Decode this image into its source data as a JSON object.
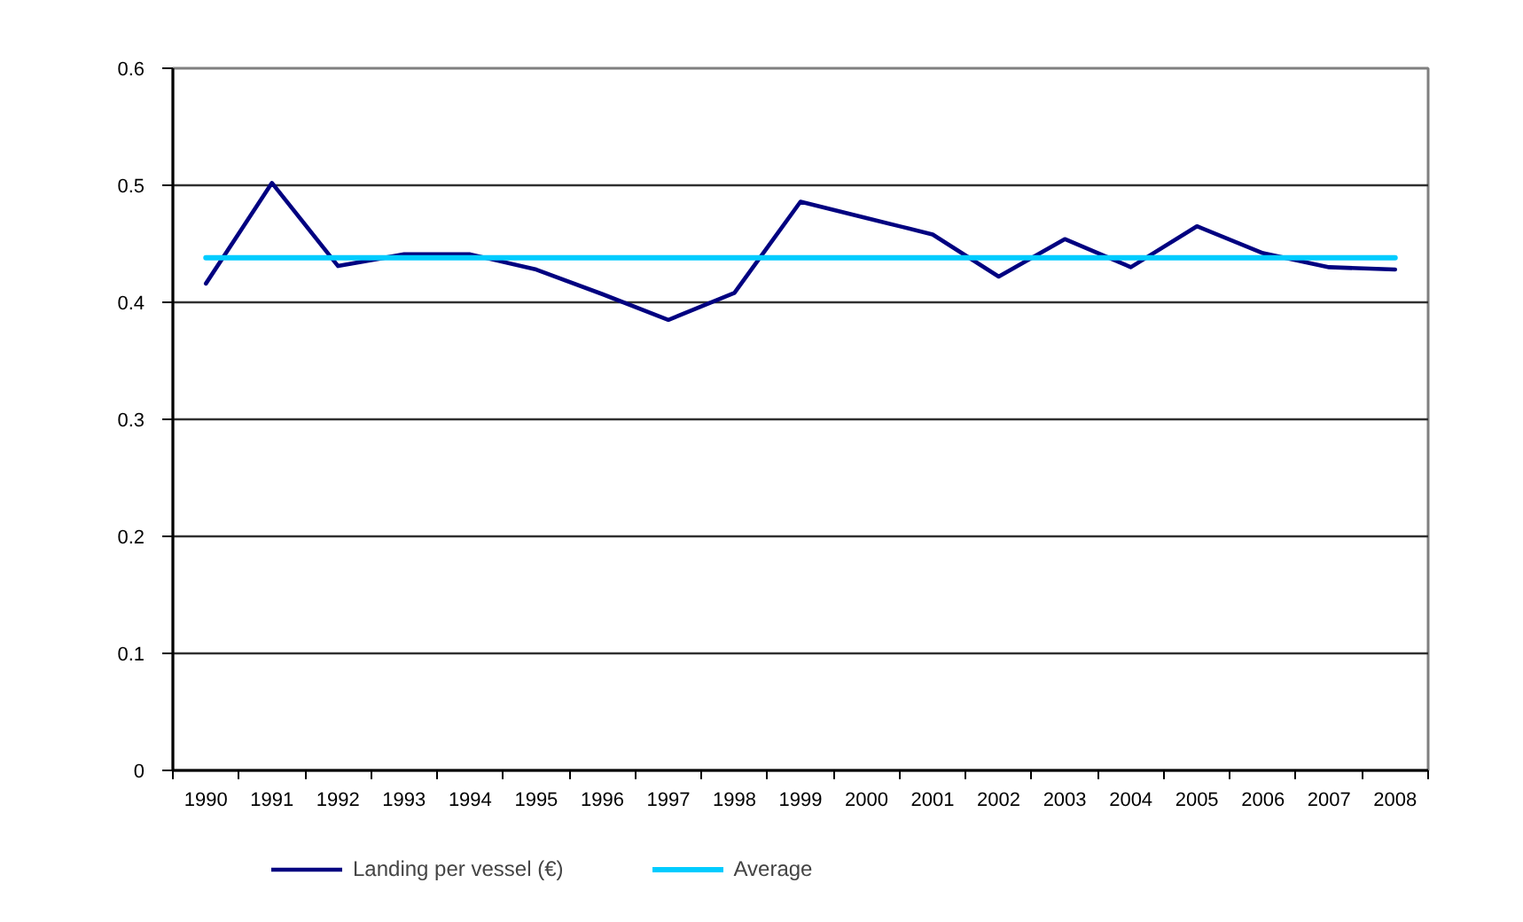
{
  "chart_data": {
    "type": "line",
    "categories": [
      "1990",
      "1991",
      "1992",
      "1993",
      "1994",
      "1995",
      "1996",
      "1997",
      "1998",
      "1999",
      "2000",
      "2001",
      "2002",
      "2003",
      "2004",
      "2005",
      "2006",
      "2007",
      "2008"
    ],
    "series": [
      {
        "name": "Landing per vessel (€)",
        "color": "#000080",
        "values": [
          0.416,
          0.502,
          0.431,
          0.441,
          0.441,
          0.428,
          0.407,
          0.385,
          0.408,
          0.486,
          0.472,
          0.458,
          0.422,
          0.454,
          0.43,
          0.465,
          0.442,
          0.43,
          0.428
        ]
      },
      {
        "name": "Average",
        "color": "#00ccff",
        "values": [
          0.438,
          0.438,
          0.438,
          0.438,
          0.438,
          0.438,
          0.438,
          0.438,
          0.438,
          0.438,
          0.438,
          0.438,
          0.438,
          0.438,
          0.438,
          0.438,
          0.438,
          0.438,
          0.438
        ]
      }
    ],
    "ylim": [
      0,
      0.6
    ],
    "yticks": [
      0,
      0.1,
      0.2,
      0.3,
      0.4,
      0.5,
      0.6
    ],
    "grid": "y",
    "legend": "bottom"
  }
}
